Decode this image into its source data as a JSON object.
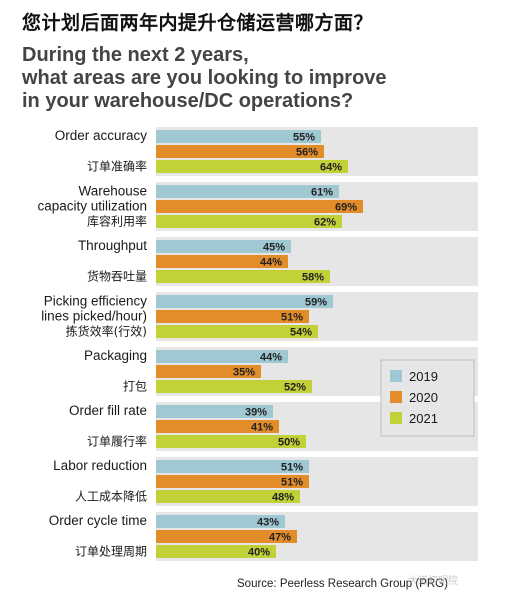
{
  "title_cn": "您计划后面两年内提升仓储运营哪方面？",
  "title_en_lines": [
    "During the next 2 years,",
    "what areas are you looking to improve",
    "in your warehouse/DC operations?"
  ],
  "source": "Source: Peerless Research Group (PRG)",
  "watermark": "大道初明院",
  "colors": {
    "panel": "#e6e6e6",
    "2019": "#9fc8d3",
    "2020": "#e28d2a",
    "2021": "#c2d138"
  },
  "chart_data": {
    "type": "bar",
    "orientation": "horizontal",
    "xlim": [
      0,
      100
    ],
    "categories": [
      {
        "en": [
          "Order accuracy"
        ],
        "cn": "订单准确率"
      },
      {
        "en": [
          "Warehouse",
          "capacity utilization"
        ],
        "cn": "库容利用率"
      },
      {
        "en": [
          "Throughput"
        ],
        "cn": "货物吞吐量"
      },
      {
        "en": [
          "Picking efficiency",
          "lines picked/hour)"
        ],
        "cn": "拣货效率(行效)"
      },
      {
        "en": [
          "Packaging"
        ],
        "cn": "打包"
      },
      {
        "en": [
          "Order fill rate"
        ],
        "cn": "订单履行率"
      },
      {
        "en": [
          "Labor reduction"
        ],
        "cn": "人工成本降低"
      },
      {
        "en": [
          "Order cycle time"
        ],
        "cn": "订单处理周期"
      }
    ],
    "series": [
      {
        "name": "2019",
        "values": [
          55,
          61,
          45,
          59,
          44,
          39,
          51,
          43
        ]
      },
      {
        "name": "2020",
        "values": [
          56,
          69,
          44,
          51,
          35,
          41,
          51,
          47
        ]
      },
      {
        "name": "2021",
        "values": [
          64,
          62,
          58,
          54,
          52,
          50,
          48,
          40
        ]
      }
    ],
    "legend_position": "right"
  }
}
